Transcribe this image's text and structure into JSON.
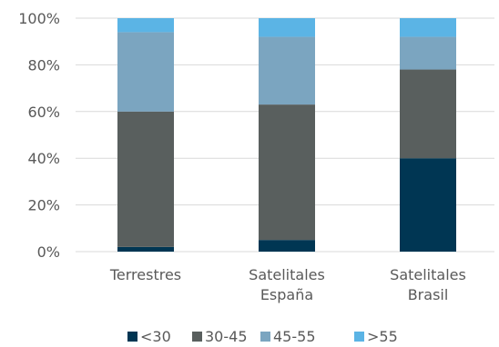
{
  "chart_data": {
    "type": "bar",
    "stacked": true,
    "percent": true,
    "categories": [
      [
        "Terrestres"
      ],
      [
        "Satelitales",
        "España"
      ],
      [
        "Satelitales",
        "Brasil"
      ]
    ],
    "series": [
      {
        "name": "<30",
        "color": "#003653",
        "values": [
          2,
          5,
          40
        ]
      },
      {
        "name": "30-45",
        "color": "#595f5e",
        "values": [
          58,
          58,
          38
        ]
      },
      {
        "name": "45-55",
        "color": "#7ba5c0",
        "values": [
          34,
          29,
          14
        ]
      },
      {
        "name": ">55",
        "color": "#5bb4e5",
        "values": [
          6,
          8,
          8
        ]
      }
    ],
    "y_ticks": [
      "0%",
      "20%",
      "40%",
      "60%",
      "80%",
      "100%"
    ],
    "ylim": [
      0,
      100
    ],
    "grid": true,
    "legend_position": "bottom"
  }
}
